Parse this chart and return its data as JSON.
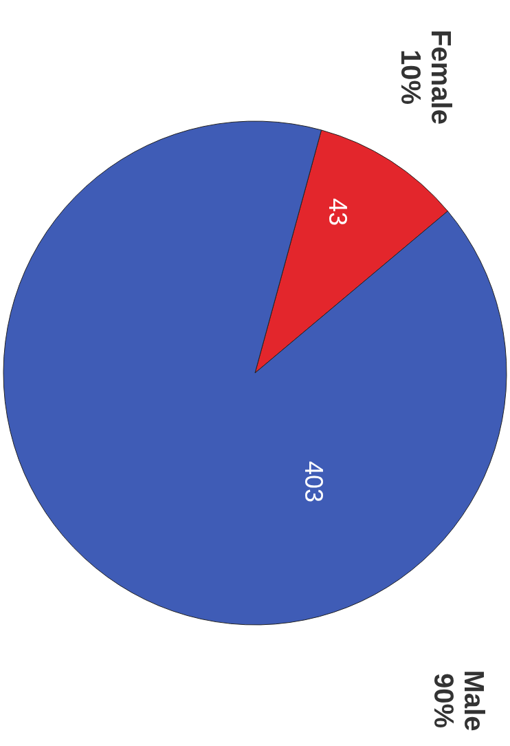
{
  "chart_data": {
    "type": "pie",
    "categories": [
      "Female",
      "Male"
    ],
    "values": [
      43,
      403
    ],
    "colors": [
      "#e3262c",
      "#3f5cb6"
    ],
    "data_labels": true,
    "annotations": [
      {
        "text": "10%",
        "x": "Female"
      },
      {
        "text": "90%",
        "x": "Male"
      }
    ]
  }
}
